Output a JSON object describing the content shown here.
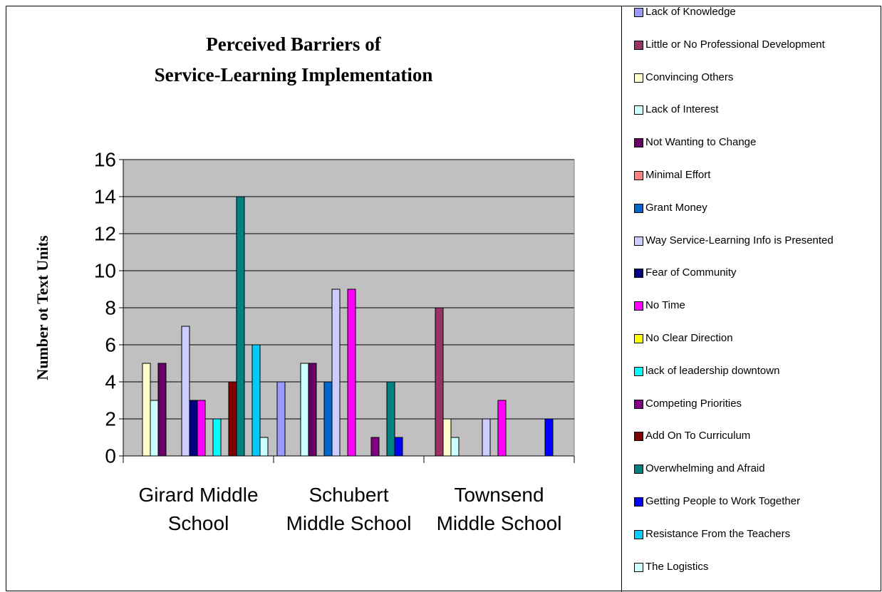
{
  "chart_data": {
    "type": "bar",
    "title": [
      "Perceived Barriers of",
      "Service-Learning Implementation"
    ],
    "y_label": "Number ot Text Units",
    "categories": [
      "Girard Middle School",
      "Schubert Middle School",
      "Townsend Middle School"
    ],
    "ylim": [
      0,
      16
    ],
    "yticks": [
      0,
      2,
      4,
      6,
      8,
      10,
      12,
      14,
      16
    ],
    "grid": true,
    "series": [
      {
        "name": "Lack of Knowledge",
        "color": "#9999ff",
        "values": [
          0,
          4,
          0
        ]
      },
      {
        "name": "Little or No Professional Development",
        "color": "#993366",
        "values": [
          0,
          0,
          8
        ]
      },
      {
        "name": "Convincing Others",
        "color": "#ffffcc",
        "values": [
          5,
          0,
          2
        ]
      },
      {
        "name": "Lack of Interest",
        "color": "#ccffff",
        "values": [
          3,
          5,
          1
        ]
      },
      {
        "name": "Not Wanting to Change",
        "color": "#660066",
        "values": [
          5,
          5,
          0
        ]
      },
      {
        "name": "Minimal Effort",
        "color": "#ff8080",
        "values": [
          0,
          0,
          0
        ]
      },
      {
        "name": "Grant Money",
        "color": "#0066cc",
        "values": [
          0,
          4,
          0
        ]
      },
      {
        "name": "Way  Service-Learning Info is Presented",
        "color": "#ccccff",
        "values": [
          7,
          9,
          2
        ]
      },
      {
        "name": "Fear of Community",
        "color": "#000080",
        "values": [
          3,
          0,
          0
        ]
      },
      {
        "name": "No Time",
        "color": "#ff00ff",
        "values": [
          3,
          9,
          3
        ]
      },
      {
        "name": "No Clear Direction",
        "color": "#ffff00",
        "values": [
          0,
          0,
          0
        ]
      },
      {
        "name": "lack of leadership downtown",
        "color": "#00ffff",
        "values": [
          2,
          0,
          0
        ]
      },
      {
        "name": "Competing Priorities",
        "color": "#800080",
        "values": [
          0,
          1,
          0
        ]
      },
      {
        "name": "Add On To Curriculum",
        "color": "#800000",
        "values": [
          4,
          0,
          0
        ]
      },
      {
        "name": "Overwhelming  and Afraid",
        "color": "#008080",
        "values": [
          14,
          4,
          0
        ]
      },
      {
        "name": "Getting People to Work Together",
        "color": "#0000ff",
        "values": [
          0,
          1,
          2
        ]
      },
      {
        "name": "Resistance From the Teachers",
        "color": "#00ccff",
        "values": [
          6,
          0,
          0
        ]
      },
      {
        "name": "The Logistics",
        "color": "#ccffff",
        "values": [
          1,
          0,
          0
        ]
      }
    ]
  }
}
